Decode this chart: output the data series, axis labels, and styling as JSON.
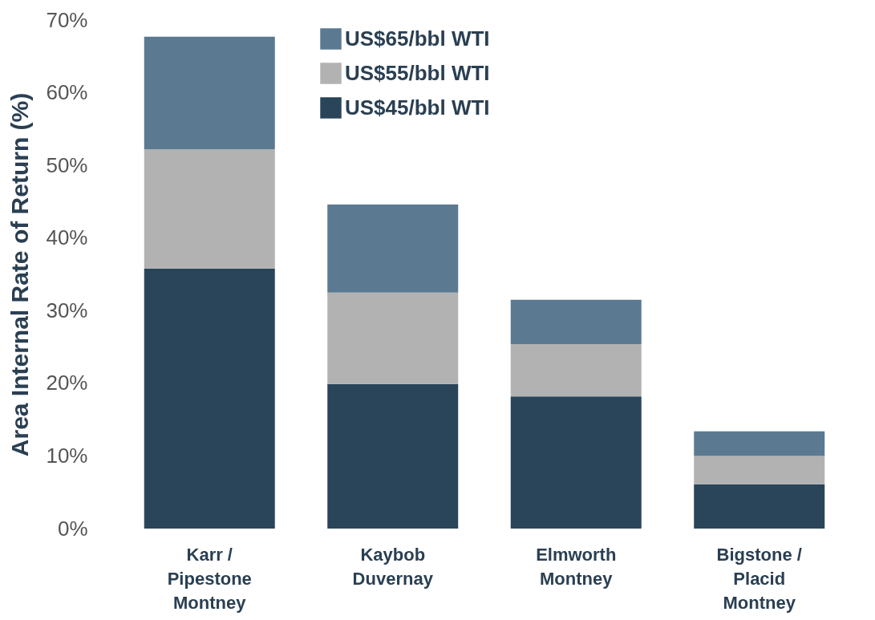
{
  "chart_data": {
    "type": "bar",
    "stacked": true,
    "ylabel": "Area Internal Rate of Return (%)",
    "categories": [
      "Karr / Pipestone Montney",
      "Kaybob Duvernay",
      "Elmworth Montney",
      "Bigstone / Placid Montney"
    ],
    "series": [
      {
        "name": "US$45/bbl WTI",
        "color": "#2a4559",
        "values": [
          35.8,
          19.9,
          18.2,
          6.1
        ]
      },
      {
        "name": "US$55/bbl WTI",
        "color": "#b2b2b2",
        "values": [
          16.4,
          12.6,
          7.2,
          3.9
        ]
      },
      {
        "name": "US$65/bbl WTI",
        "color": "#5b7a91",
        "values": [
          15.5,
          12.1,
          6.1,
          3.4
        ]
      }
    ],
    "ylim": [
      0,
      70
    ],
    "yticks": [
      {
        "value": 0,
        "label": "0%"
      },
      {
        "value": 10,
        "label": "10%"
      },
      {
        "value": 20,
        "label": "20%"
      },
      {
        "value": 30,
        "label": "30%"
      },
      {
        "value": 40,
        "label": "40%"
      },
      {
        "value": 50,
        "label": "50%"
      },
      {
        "value": 60,
        "label": "60%"
      },
      {
        "value": 70,
        "label": "70%"
      }
    ],
    "grid": false,
    "legend": "top"
  }
}
